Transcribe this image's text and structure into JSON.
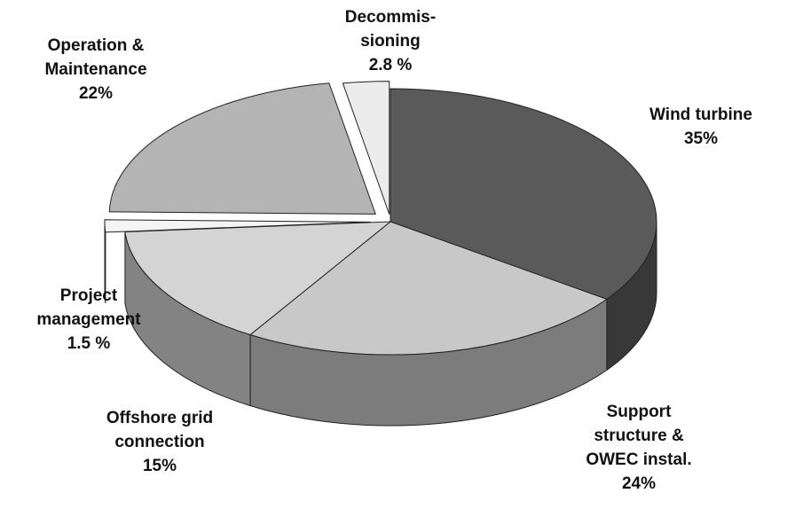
{
  "chart_data": {
    "type": "pie",
    "categories": [
      [
        "Wind turbine"
      ],
      [
        "Support",
        "structure &",
        "OWEC instal."
      ],
      [
        "Offshore grid",
        "connection"
      ],
      [
        "Project",
        "management"
      ],
      [
        "Operation &",
        "Maintenance"
      ],
      [
        "Decommis-",
        "sioning"
      ]
    ],
    "values": [
      35,
      24,
      15,
      1.5,
      22,
      2.8
    ],
    "value_labels": [
      "35%",
      "24%",
      "15%",
      "1.5 %",
      "22%",
      "2.8 %"
    ],
    "colors": [
      "#5a5a5a",
      "#c8c8c8",
      "#d4d4d4",
      "#f4f4f4",
      "#b4b4b4",
      "#ececec"
    ]
  }
}
